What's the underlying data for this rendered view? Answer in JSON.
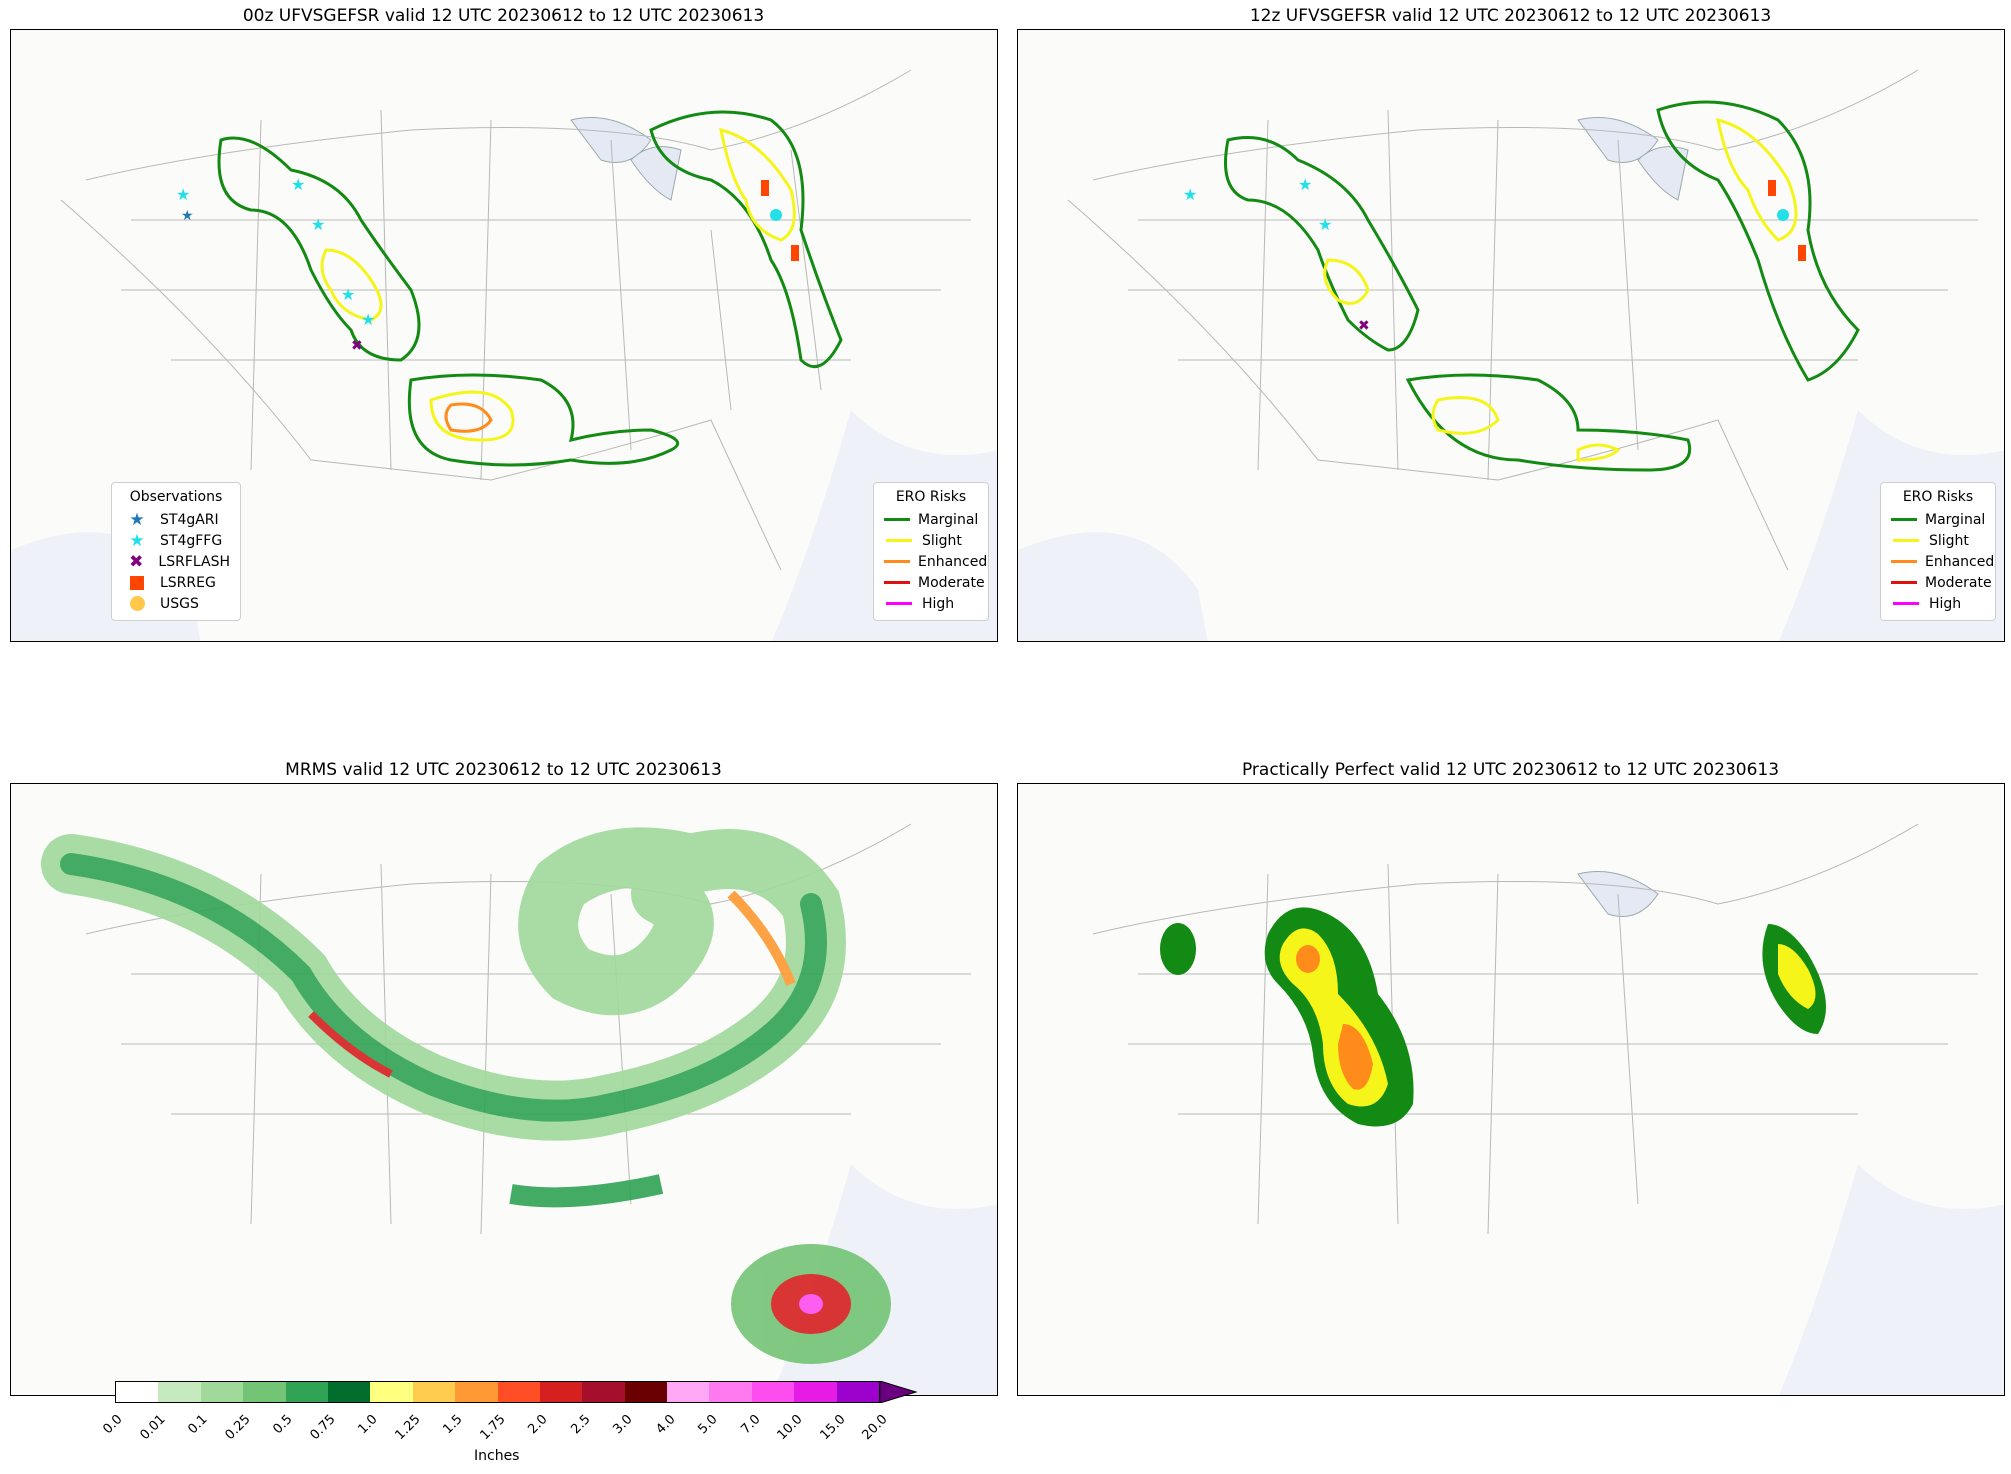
{
  "panels": [
    {
      "id": "p1",
      "title": "00z UFVSGEFSR valid 12 UTC 20230612 to 12 UTC 20230613"
    },
    {
      "id": "p2",
      "title": "12z UFVSGEFSR valid 12 UTC 20230612 to 12 UTC 20230613"
    },
    {
      "id": "p3",
      "title": "MRMS valid 12 UTC 20230612 to 12 UTC 20230613"
    },
    {
      "id": "p4",
      "title": "Practically Perfect valid 12 UTC 20230612 to 12 UTC 20230613"
    }
  ],
  "observations_legend": {
    "title": "Observations",
    "items": [
      {
        "label": "ST4gARI",
        "symbol": "star",
        "color": "#1f77b4"
      },
      {
        "label": "ST4gFFG",
        "symbol": "star",
        "color": "#22e0e8"
      },
      {
        "label": "LSRFLASH",
        "symbol": "x",
        "color": "#800080"
      },
      {
        "label": "LSRREG",
        "symbol": "square",
        "color": "#ff4500"
      },
      {
        "label": "USGS",
        "symbol": "circle",
        "color": "#ffc84a"
      }
    ]
  },
  "ero_legend": {
    "title": "ERO Risks",
    "items": [
      {
        "label": "Marginal",
        "color": "#138a13"
      },
      {
        "label": "Slight",
        "color": "#f5f51a"
      },
      {
        "label": "Enhanced",
        "color": "#ff8c1a"
      },
      {
        "label": "Moderate",
        "color": "#e01010"
      },
      {
        "label": "High",
        "color": "#ff00ff"
      }
    ]
  },
  "colorbar": {
    "label": "Inches",
    "ticks": [
      "0.0",
      "0.01",
      "0.1",
      "0.25",
      "0.5",
      "0.75",
      "1.0",
      "1.25",
      "1.5",
      "1.75",
      "2.0",
      "2.5",
      "3.0",
      "4.0",
      "5.0",
      "7.0",
      "10.0",
      "15.0",
      "20.0"
    ],
    "colors": [
      "#ffffff",
      "#c7e9c0",
      "#a1d99b",
      "#74c476",
      "#31a354",
      "#006d2c",
      "#ffff80",
      "#ffcc4d",
      "#ff9933",
      "#ff4d26",
      "#d62020",
      "#a50f2b",
      "#6a0000",
      "#ffa8f5",
      "#ff7aee",
      "#ff4df0",
      "#e61ce6",
      "#9b00cc"
    ],
    "over_color": "#6a0080"
  }
}
